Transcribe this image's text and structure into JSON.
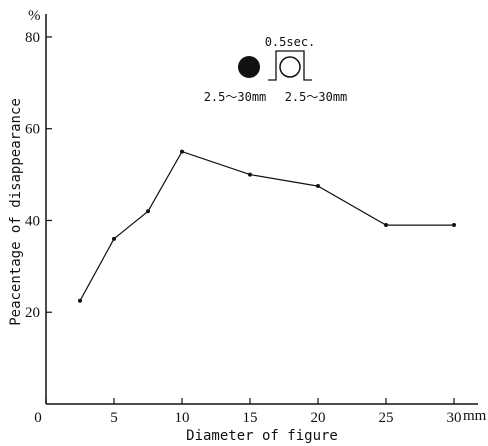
{
  "chart_data": {
    "type": "line",
    "title": "",
    "xlabel": "Diameter of figure",
    "ylabel": "Peacentage of disappearance",
    "y_unit_label": "%",
    "x_unit_label": "mm",
    "xlim": [
      0,
      30
    ],
    "ylim": [
      0,
      85
    ],
    "grid": false,
    "x_ticks": [
      {
        "value": 0,
        "label": "0"
      },
      {
        "value": 5,
        "label": "5"
      },
      {
        "value": 10,
        "label": "10"
      },
      {
        "value": 15,
        "label": "15"
      },
      {
        "value": 20,
        "label": "20"
      },
      {
        "value": 25,
        "label": "25"
      },
      {
        "value": 30,
        "label": "30"
      }
    ],
    "y_ticks": [
      {
        "value": 20,
        "label": "20"
      },
      {
        "value": 40,
        "label": "40"
      },
      {
        "value": 60,
        "label": "60"
      },
      {
        "value": 80,
        "label": "80"
      }
    ],
    "series": [
      {
        "x": [
          2.5,
          5,
          7.5,
          10,
          15,
          20,
          25,
          30
        ],
        "y": [
          22.5,
          36,
          42,
          55,
          50,
          47.5,
          39,
          39
        ]
      }
    ],
    "legend": {
      "placement": "top-center",
      "duration_label": "0.5sec.",
      "range_label_filled": "2.5～30mm",
      "range_label_outline": "2.5～30mm"
    },
    "colors": {
      "line": "#111111",
      "axis": "#111111"
    }
  }
}
